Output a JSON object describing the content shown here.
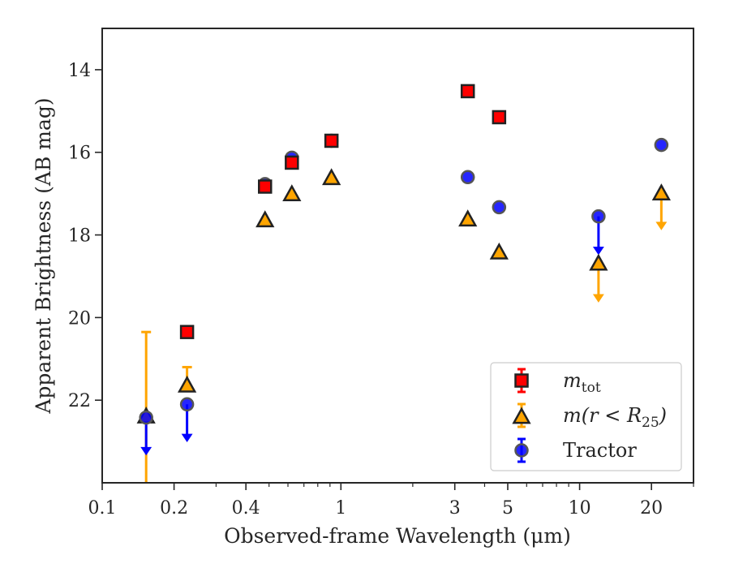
{
  "chart_data": {
    "type": "scatter",
    "xlabel": "Observed-frame Wavelength (μm)",
    "ylabel": "Apparent Brightness (AB mag)",
    "xscale": "log",
    "xlim": [
      0.1,
      30
    ],
    "ylim": [
      24,
      13
    ],
    "y_inverted": true,
    "x_ticks": [
      {
        "value": 0.1,
        "label": "0.1"
      },
      {
        "value": 0.2,
        "label": "0.2"
      },
      {
        "value": 0.4,
        "label": "0.4"
      },
      {
        "value": 1,
        "label": "1"
      },
      {
        "value": 3,
        "label": "3"
      },
      {
        "value": 5,
        "label": "5"
      },
      {
        "value": 10,
        "label": "10"
      },
      {
        "value": 20,
        "label": "20"
      }
    ],
    "y_ticks": [
      {
        "value": 14,
        "label": "14"
      },
      {
        "value": 16,
        "label": "16"
      },
      {
        "value": 18,
        "label": "18"
      },
      {
        "value": 20,
        "label": "20"
      },
      {
        "value": 22,
        "label": "22"
      }
    ],
    "grid": false,
    "legend_position": "lower-right",
    "series": [
      {
        "key": "mtot",
        "name": "m_tot",
        "legend_main": "m",
        "legend_sub": "tot",
        "marker": "square",
        "color": "#ff0000",
        "points": [
          {
            "x": 0.2267,
            "y": 20.35,
            "err": 0.08
          },
          {
            "x": 0.481,
            "y": 16.83,
            "err": 0.05
          },
          {
            "x": 0.623,
            "y": 16.25,
            "err": 0.08
          },
          {
            "x": 0.913,
            "y": 15.72,
            "err": 0.05
          },
          {
            "x": 3.4,
            "y": 14.52,
            "err": 0.05
          },
          {
            "x": 4.6,
            "y": 15.15,
            "err": 0.05
          }
        ]
      },
      {
        "key": "mr25",
        "name": "m(r < R_25)",
        "legend_main": "m(r < R",
        "legend_sub": "25",
        "legend_end": ")",
        "marker": "triangle",
        "color": "#ffa500",
        "points": [
          {
            "x": 0.1528,
            "y": 22.4,
            "err_low": 20.35,
            "err_high": 24.0
          },
          {
            "x": 0.2267,
            "y": 21.65,
            "err_low": 21.2,
            "err_high": 21.65
          },
          {
            "x": 0.481,
            "y": 17.65
          },
          {
            "x": 0.623,
            "y": 17.02
          },
          {
            "x": 0.913,
            "y": 16.63
          },
          {
            "x": 3.4,
            "y": 17.63
          },
          {
            "x": 4.6,
            "y": 18.43
          },
          {
            "x": 12.0,
            "y": 18.7,
            "upper_limit": true,
            "arrow_to": 19.6
          },
          {
            "x": 22.0,
            "y": 17.0,
            "upper_limit": true,
            "arrow_to": 17.85
          }
        ]
      },
      {
        "key": "tractor",
        "name": "Tractor",
        "legend_main": "Tractor",
        "marker": "circle",
        "color": "#0000ff",
        "points": [
          {
            "x": 0.1528,
            "y": 22.42,
            "upper_limit": true,
            "arrow_to": 23.3
          },
          {
            "x": 0.2267,
            "y": 22.1,
            "upper_limit": true,
            "arrow_to": 22.98
          },
          {
            "x": 0.481,
            "y": 16.77
          },
          {
            "x": 0.623,
            "y": 16.13
          },
          {
            "x": 0.913,
            "y": 15.72
          },
          {
            "x": 3.4,
            "y": 16.6
          },
          {
            "x": 4.6,
            "y": 17.33
          },
          {
            "x": 12.0,
            "y": 17.55,
            "upper_limit": true,
            "arrow_to": 18.45
          },
          {
            "x": 22.0,
            "y": 15.82
          }
        ]
      }
    ]
  }
}
